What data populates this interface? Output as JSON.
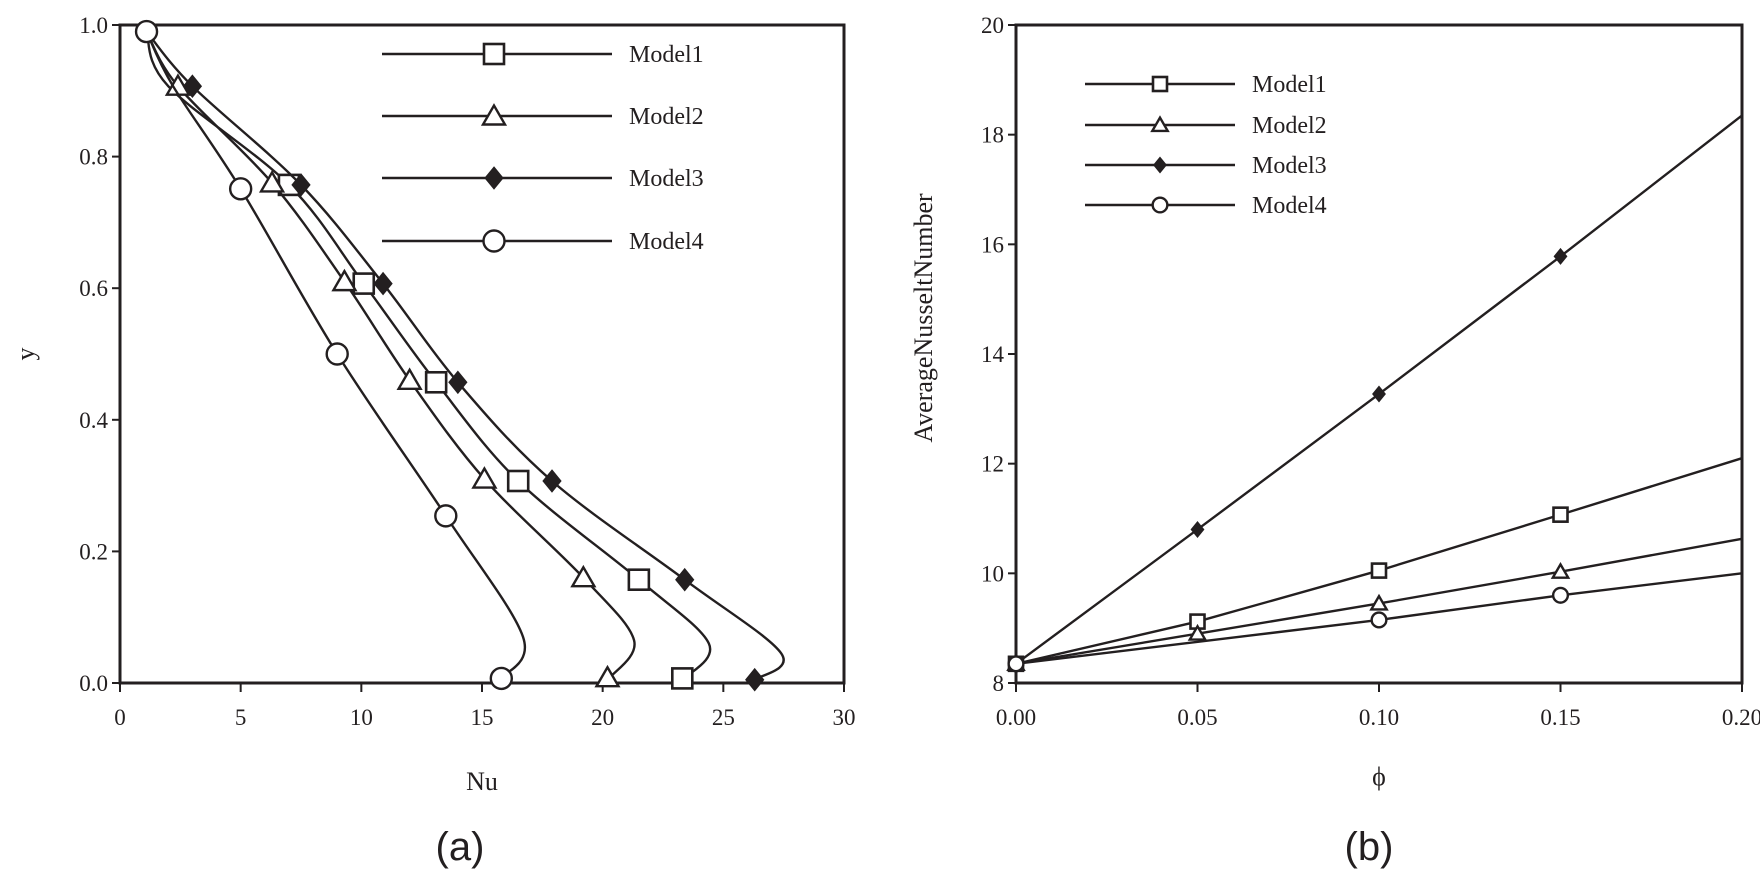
{
  "chart_data": [
    {
      "type": "line",
      "panel_label": "(a)",
      "xlabel": "Nu",
      "ylabel": "y",
      "xlim": [
        0,
        30
      ],
      "ylim": [
        0,
        1
      ],
      "xticks": [
        0,
        5,
        10,
        15,
        20,
        25,
        30
      ],
      "xtick_labels": [
        "0",
        "5",
        "10",
        "15",
        "20",
        "25",
        "30"
      ],
      "yticks": [
        0,
        0.2,
        0.4,
        0.6,
        0.8,
        1.0
      ],
      "ytick_labels": [
        "0.0",
        "0.2",
        "0.4",
        "0.6",
        "0.8",
        "1.0"
      ],
      "grid": false,
      "legend_position": "top-right",
      "series": [
        {
          "name": "Model1",
          "marker": "square",
          "points": [
            [
              7.0,
              0.757
            ],
            [
              10.1,
              0.607
            ],
            [
              13.1,
              0.457
            ],
            [
              16.5,
              0.307
            ],
            [
              21.5,
              0.157
            ],
            [
              23.3,
              0.007
            ]
          ],
          "curve": [
            [
              1.1,
              0.99
            ],
            [
              2.0,
              0.907
            ],
            [
              7.0,
              0.757
            ],
            [
              10.1,
              0.607
            ],
            [
              13.1,
              0.457
            ],
            [
              16.5,
              0.307
            ],
            [
              21.5,
              0.157
            ],
            [
              24.4,
              0.06
            ],
            [
              23.4,
              0.007
            ]
          ]
        },
        {
          "name": "Model2",
          "marker": "triangle",
          "points": [
            [
              2.4,
              0.907
            ],
            [
              6.3,
              0.76
            ],
            [
              9.3,
              0.61
            ],
            [
              12.0,
              0.46
            ],
            [
              15.1,
              0.31
            ],
            [
              19.2,
              0.16
            ],
            [
              20.2,
              0.008
            ]
          ],
          "curve": [
            [
              1.1,
              0.99
            ],
            [
              2.4,
              0.907
            ],
            [
              6.3,
              0.76
            ],
            [
              9.3,
              0.61
            ],
            [
              12.0,
              0.46
            ],
            [
              15.1,
              0.31
            ],
            [
              19.2,
              0.16
            ],
            [
              21.3,
              0.065
            ],
            [
              20.3,
              0.008
            ]
          ]
        },
        {
          "name": "Model3",
          "marker": "diamond",
          "points": [
            [
              3.0,
              0.907
            ],
            [
              7.5,
              0.757
            ],
            [
              10.9,
              0.607
            ],
            [
              14.0,
              0.457
            ],
            [
              17.9,
              0.307
            ],
            [
              23.4,
              0.157
            ],
            [
              26.3,
              0.005
            ]
          ],
          "curve": [
            [
              1.1,
              0.99
            ],
            [
              3.0,
              0.907
            ],
            [
              7.5,
              0.757
            ],
            [
              10.9,
              0.607
            ],
            [
              14.0,
              0.457
            ],
            [
              17.9,
              0.307
            ],
            [
              23.4,
              0.157
            ],
            [
              27.4,
              0.045
            ],
            [
              26.3,
              0.005
            ]
          ]
        },
        {
          "name": "Model4",
          "marker": "circle",
          "points": [
            [
              1.1,
              0.99
            ],
            [
              5.0,
              0.751
            ],
            [
              9.0,
              0.5
            ],
            [
              13.5,
              0.254
            ],
            [
              15.8,
              0.007
            ]
          ],
          "curve": [
            [
              1.1,
              0.99
            ],
            [
              2.2,
              0.907
            ],
            [
              5.0,
              0.751
            ],
            [
              9.0,
              0.5
            ],
            [
              13.5,
              0.254
            ],
            [
              16.7,
              0.07
            ],
            [
              15.8,
              0.007
            ]
          ]
        }
      ]
    },
    {
      "type": "line",
      "panel_label": "(b)",
      "xlabel": "ϕ",
      "ylabel": "AverageNusseltNumber",
      "xlim": [
        0,
        0.2
      ],
      "ylim": [
        8,
        20
      ],
      "xticks": [
        0,
        0.05,
        0.1,
        0.15,
        0.2
      ],
      "xtick_labels": [
        "0.00",
        "0.05",
        "0.10",
        "0.15",
        "0.20"
      ],
      "yticks": [
        8,
        10,
        12,
        14,
        16,
        18,
        20
      ],
      "ytick_labels": [
        "8",
        "10",
        "12",
        "14",
        "16",
        "18",
        "20"
      ],
      "grid": false,
      "legend_position": "top-left",
      "series": [
        {
          "name": "Model1",
          "marker": "square",
          "points": [
            [
              0,
              8.35
            ],
            [
              0.05,
              9.12
            ],
            [
              0.1,
              10.05
            ],
            [
              0.15,
              11.07
            ]
          ],
          "curve": [
            [
              0,
              8.35
            ],
            [
              0.05,
              9.12
            ],
            [
              0.1,
              10.05
            ],
            [
              0.15,
              11.07
            ],
            [
              0.2,
              12.1
            ]
          ]
        },
        {
          "name": "Model2",
          "marker": "triangle",
          "points": [
            [
              0,
              8.35
            ],
            [
              0.05,
              8.9
            ],
            [
              0.1,
              9.45
            ],
            [
              0.15,
              10.03
            ]
          ],
          "curve": [
            [
              0,
              8.35
            ],
            [
              0.05,
              8.9
            ],
            [
              0.1,
              9.45
            ],
            [
              0.15,
              10.03
            ],
            [
              0.2,
              10.63
            ]
          ]
        },
        {
          "name": "Model3",
          "marker": "diamond",
          "points": [
            [
              0,
              8.35
            ],
            [
              0.05,
              10.8
            ],
            [
              0.1,
              13.27
            ],
            [
              0.15,
              15.78
            ]
          ],
          "curve": [
            [
              0,
              8.35
            ],
            [
              0.05,
              10.8
            ],
            [
              0.1,
              13.27
            ],
            [
              0.15,
              15.78
            ],
            [
              0.2,
              18.35
            ]
          ]
        },
        {
          "name": "Model4",
          "marker": "circle",
          "points": [
            [
              0,
              8.35
            ],
            [
              0.1,
              9.15
            ],
            [
              0.15,
              9.6
            ]
          ],
          "curve": [
            [
              0,
              8.35
            ],
            [
              0.1,
              9.15
            ],
            [
              0.15,
              9.6
            ],
            [
              0.2,
              10.0
            ]
          ]
        }
      ]
    }
  ]
}
